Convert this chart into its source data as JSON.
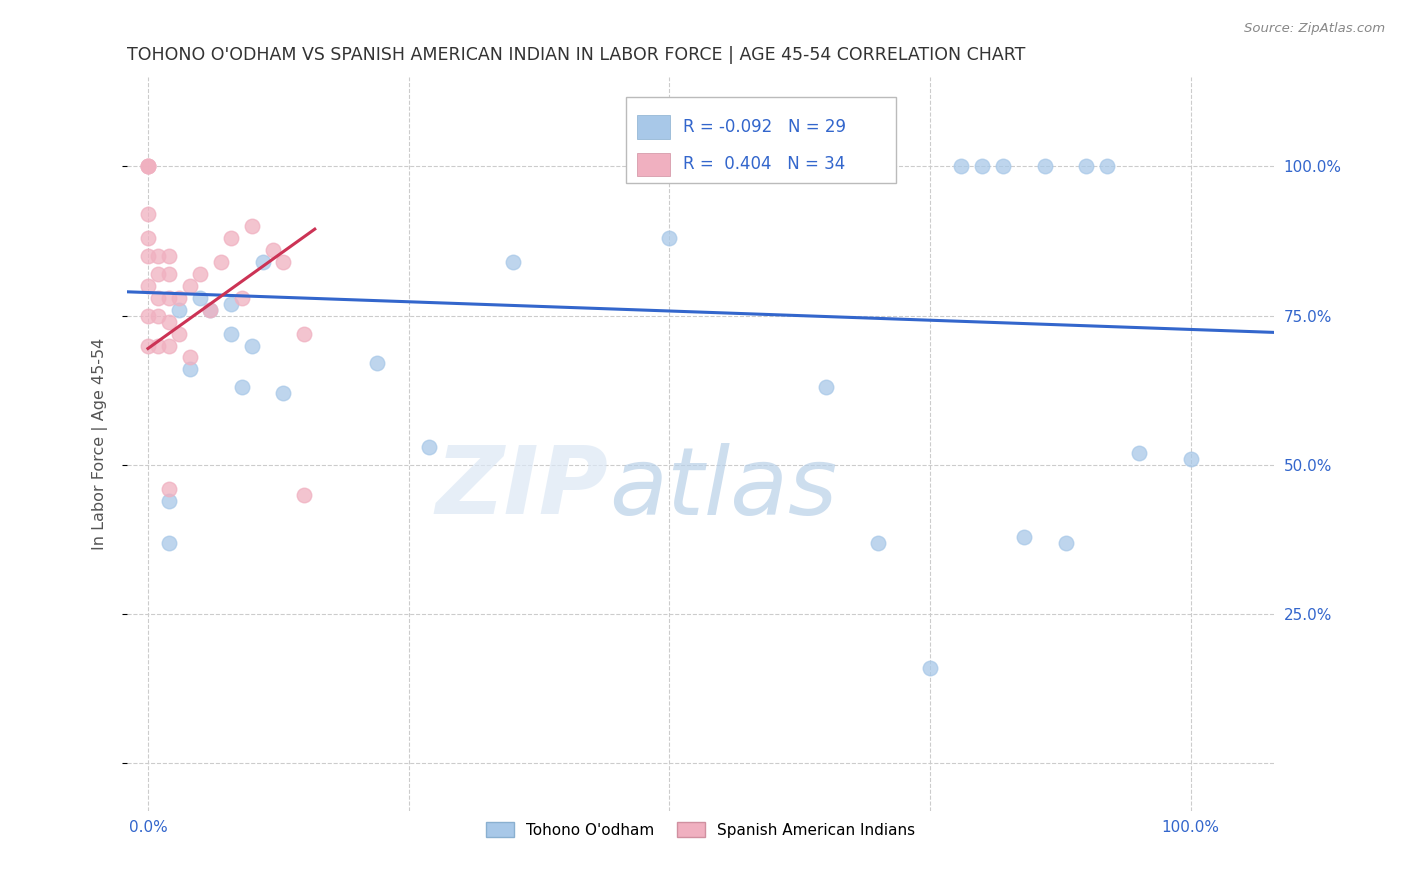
{
  "title": "TOHONO O'ODHAM VS SPANISH AMERICAN INDIAN IN LABOR FORCE | AGE 45-54 CORRELATION CHART",
  "source": "Source: ZipAtlas.com",
  "ylabel": "In Labor Force | Age 45-54",
  "x_ticks": [
    0.0,
    0.25,
    0.5,
    0.75,
    1.0
  ],
  "y_ticks": [
    0.0,
    0.25,
    0.5,
    0.75,
    1.0
  ],
  "y_tick_labels_right": [
    "",
    "25.0%",
    "50.0%",
    "75.0%",
    "100.0%"
  ],
  "xlim": [
    -0.02,
    1.08
  ],
  "ylim": [
    -0.08,
    1.15
  ],
  "blue_R": "-0.092",
  "blue_N": "29",
  "pink_R": "0.404",
  "pink_N": "34",
  "legend_label_blue": "Tohono O'odham",
  "legend_label_pink": "Spanish American Indians",
  "blue_color": "#a8c8e8",
  "pink_color": "#f0b0c0",
  "blue_line_color": "#3366cc",
  "pink_line_color": "#cc3355",
  "marker_size": 110,
  "blue_points_x": [
    0.02,
    0.02,
    0.03,
    0.04,
    0.05,
    0.06,
    0.08,
    0.08,
    0.09,
    0.1,
    0.11,
    0.13,
    0.22,
    0.27,
    0.35,
    0.5,
    0.65,
    0.7,
    0.75,
    0.78,
    0.8,
    0.82,
    0.84,
    0.86,
    0.88,
    0.9,
    0.92,
    0.95,
    1.0
  ],
  "blue_points_y": [
    0.44,
    0.37,
    0.76,
    0.66,
    0.78,
    0.76,
    0.77,
    0.72,
    0.63,
    0.7,
    0.84,
    0.62,
    0.67,
    0.53,
    0.84,
    0.88,
    0.63,
    0.37,
    0.16,
    1.0,
    1.0,
    1.0,
    0.38,
    1.0,
    0.37,
    1.0,
    1.0,
    0.52,
    0.51
  ],
  "pink_points_x": [
    0.0,
    0.0,
    0.0,
    0.0,
    0.0,
    0.0,
    0.0,
    0.0,
    0.0,
    0.01,
    0.01,
    0.01,
    0.01,
    0.01,
    0.02,
    0.02,
    0.02,
    0.02,
    0.02,
    0.02,
    0.03,
    0.03,
    0.04,
    0.04,
    0.05,
    0.06,
    0.07,
    0.08,
    0.09,
    0.1,
    0.12,
    0.13,
    0.15,
    0.15
  ],
  "pink_points_y": [
    1.0,
    1.0,
    1.0,
    0.92,
    0.88,
    0.85,
    0.8,
    0.75,
    0.7,
    0.85,
    0.82,
    0.78,
    0.75,
    0.7,
    0.85,
    0.82,
    0.78,
    0.74,
    0.7,
    0.46,
    0.78,
    0.72,
    0.8,
    0.68,
    0.82,
    0.76,
    0.84,
    0.88,
    0.78,
    0.9,
    0.86,
    0.84,
    0.72,
    0.45
  ],
  "blue_trend_x": [
    -0.02,
    1.08
  ],
  "blue_trend_y": [
    0.79,
    0.722
  ],
  "pink_trend_x": [
    0.0,
    0.16
  ],
  "pink_trend_y": [
    0.695,
    0.895
  ],
  "watermark_zip": "ZIP",
  "watermark_atlas": "atlas",
  "background_color": "#ffffff",
  "grid_color": "#cccccc",
  "title_color": "#333333",
  "axis_label_color": "#555555",
  "tick_label_color": "#3366cc",
  "legend_text_color": "#222222"
}
